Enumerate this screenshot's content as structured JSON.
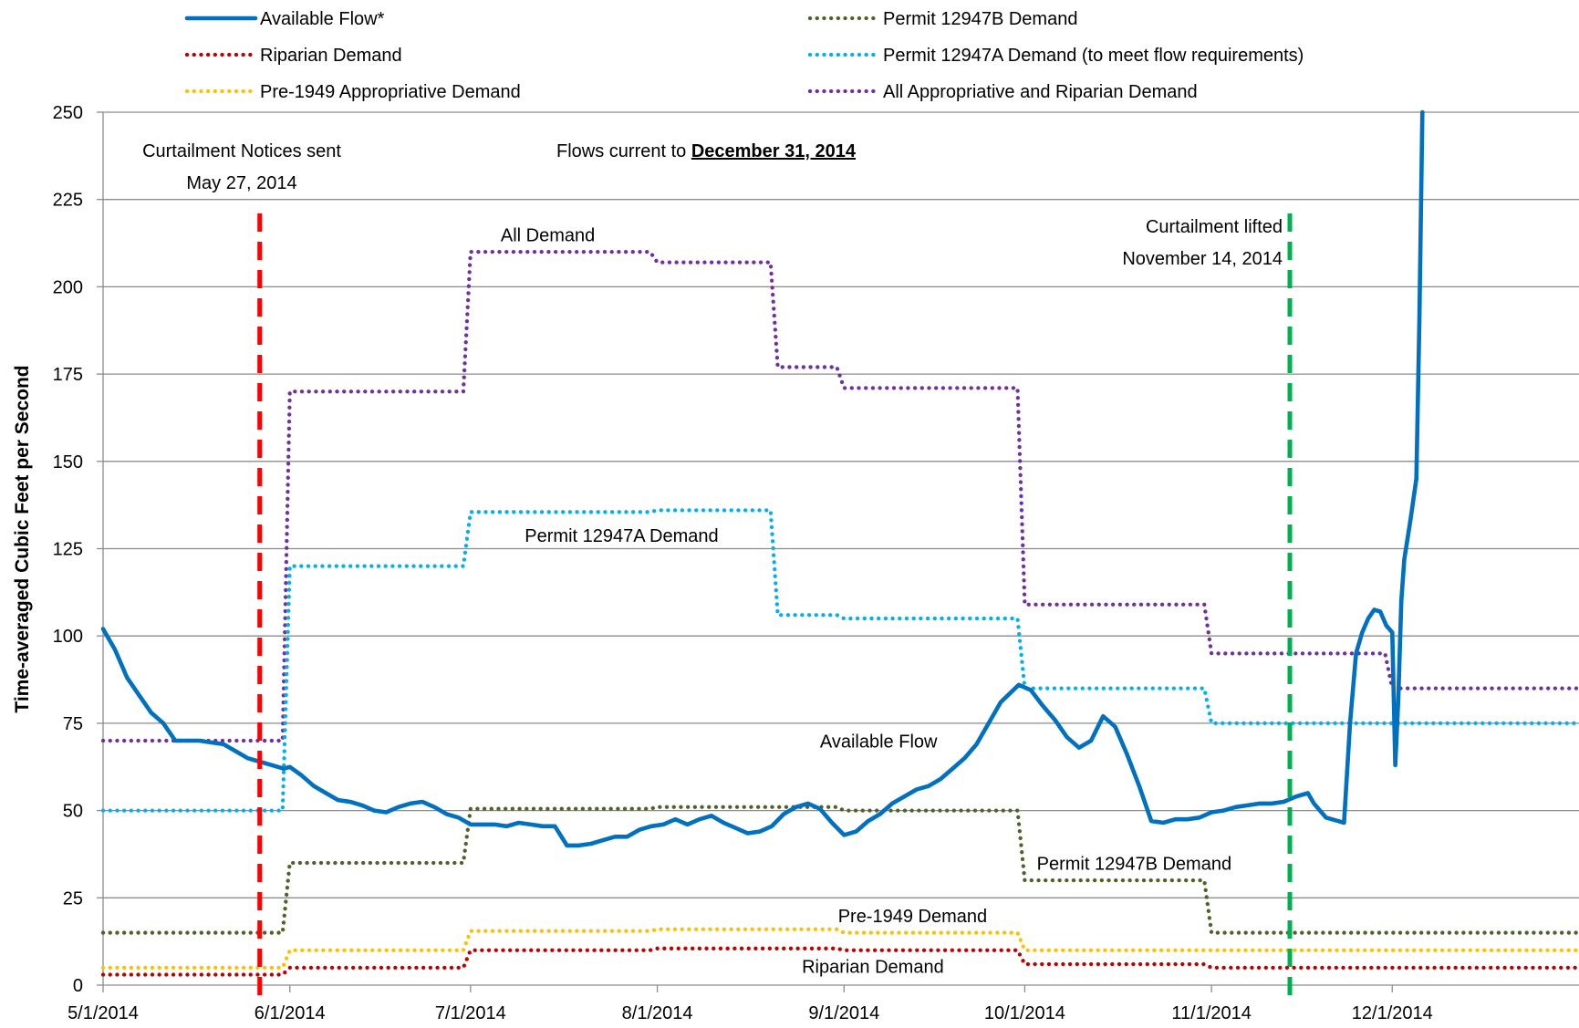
{
  "chart_data": {
    "type": "line",
    "ylabel": "Time-averaged Cubic Feet per Second",
    "xlabel": "",
    "ylim": [
      0,
      250
    ],
    "y_ticks": [
      0,
      25,
      50,
      75,
      100,
      125,
      150,
      175,
      200,
      225,
      250
    ],
    "x_range": [
      "2014-05-01",
      "2015-01-01"
    ],
    "x_ticks": [
      {
        "date": "2014-05-01",
        "label": "5/1/2014"
      },
      {
        "date": "2014-06-01",
        "label": "6/1/2014"
      },
      {
        "date": "2014-07-01",
        "label": "7/1/2014"
      },
      {
        "date": "2014-08-01",
        "label": "8/1/2014"
      },
      {
        "date": "2014-09-01",
        "label": "9/1/2014"
      },
      {
        "date": "2014-10-01",
        "label": "10/1/2014"
      },
      {
        "date": "2014-11-01",
        "label": "11/1/2014"
      },
      {
        "date": "2014-12-01",
        "label": "12/1/2014"
      }
    ],
    "grid": "horizontal",
    "legend_position": "top",
    "series": [
      {
        "name": "Available Flow*",
        "color": "#0070C0",
        "style": "solid",
        "step": false,
        "points": [
          [
            "2014-05-01",
            102
          ],
          [
            "2014-05-03",
            96
          ],
          [
            "2014-05-05",
            88
          ],
          [
            "2014-05-07",
            83
          ],
          [
            "2014-05-09",
            78
          ],
          [
            "2014-05-11",
            75
          ],
          [
            "2014-05-13",
            70
          ],
          [
            "2014-05-15",
            70
          ],
          [
            "2014-05-17",
            70
          ],
          [
            "2014-05-19",
            69.5
          ],
          [
            "2014-05-21",
            69
          ],
          [
            "2014-05-23",
            67
          ],
          [
            "2014-05-25",
            65
          ],
          [
            "2014-05-27",
            64
          ],
          [
            "2014-05-29",
            63
          ],
          [
            "2014-05-31",
            62
          ],
          [
            "2014-06-01",
            62.5
          ],
          [
            "2014-06-03",
            60
          ],
          [
            "2014-06-05",
            57
          ],
          [
            "2014-06-07",
            55
          ],
          [
            "2014-06-09",
            53
          ],
          [
            "2014-06-11",
            52.5
          ],
          [
            "2014-06-13",
            51.5
          ],
          [
            "2014-06-15",
            50
          ],
          [
            "2014-06-17",
            49.5
          ],
          [
            "2014-06-19",
            51
          ],
          [
            "2014-06-21",
            52
          ],
          [
            "2014-06-23",
            52.5
          ],
          [
            "2014-06-25",
            51
          ],
          [
            "2014-06-27",
            49
          ],
          [
            "2014-06-29",
            48
          ],
          [
            "2014-07-01",
            46
          ],
          [
            "2014-07-03",
            46
          ],
          [
            "2014-07-05",
            46
          ],
          [
            "2014-07-07",
            45.5
          ],
          [
            "2014-07-09",
            46.5
          ],
          [
            "2014-07-11",
            46
          ],
          [
            "2014-07-13",
            45.5
          ],
          [
            "2014-07-15",
            45.5
          ],
          [
            "2014-07-17",
            40
          ],
          [
            "2014-07-19",
            40
          ],
          [
            "2014-07-21",
            40.5
          ],
          [
            "2014-07-23",
            41.5
          ],
          [
            "2014-07-25",
            42.5
          ],
          [
            "2014-07-27",
            42.5
          ],
          [
            "2014-07-29",
            44.5
          ],
          [
            "2014-07-31",
            45.5
          ],
          [
            "2014-08-02",
            46
          ],
          [
            "2014-08-04",
            47.5
          ],
          [
            "2014-08-06",
            46
          ],
          [
            "2014-08-08",
            47.5
          ],
          [
            "2014-08-10",
            48.5
          ],
          [
            "2014-08-12",
            46.5
          ],
          [
            "2014-08-14",
            45
          ],
          [
            "2014-08-16",
            43.5
          ],
          [
            "2014-08-18",
            44
          ],
          [
            "2014-08-20",
            45.5
          ],
          [
            "2014-08-22",
            49
          ],
          [
            "2014-08-24",
            51
          ],
          [
            "2014-08-26",
            52
          ],
          [
            "2014-08-28",
            50.5
          ],
          [
            "2014-08-30",
            46.5
          ],
          [
            "2014-09-01",
            43
          ],
          [
            "2014-09-03",
            44
          ],
          [
            "2014-09-05",
            47
          ],
          [
            "2014-09-07",
            49
          ],
          [
            "2014-09-09",
            52
          ],
          [
            "2014-09-11",
            54
          ],
          [
            "2014-09-13",
            56
          ],
          [
            "2014-09-15",
            57
          ],
          [
            "2014-09-17",
            59
          ],
          [
            "2014-09-19",
            62
          ],
          [
            "2014-09-21",
            65
          ],
          [
            "2014-09-23",
            69
          ],
          [
            "2014-09-25",
            75
          ],
          [
            "2014-09-27",
            81
          ],
          [
            "2014-09-30",
            86
          ],
          [
            "2014-10-02",
            84.5
          ],
          [
            "2014-10-04",
            80
          ],
          [
            "2014-10-06",
            76
          ],
          [
            "2014-10-08",
            71
          ],
          [
            "2014-10-10",
            68
          ],
          [
            "2014-10-12",
            70
          ],
          [
            "2014-10-14",
            77
          ],
          [
            "2014-10-16",
            74
          ],
          [
            "2014-10-18",
            66
          ],
          [
            "2014-10-20",
            57
          ],
          [
            "2014-10-22",
            47
          ],
          [
            "2014-10-24",
            46.5
          ],
          [
            "2014-10-26",
            47.5
          ],
          [
            "2014-10-28",
            47.5
          ],
          [
            "2014-10-30",
            48
          ],
          [
            "2014-11-01",
            49.5
          ],
          [
            "2014-11-03",
            50
          ],
          [
            "2014-11-05",
            51
          ],
          [
            "2014-11-07",
            51.5
          ],
          [
            "2014-11-09",
            52
          ],
          [
            "2014-11-11",
            52
          ],
          [
            "2014-11-13",
            52.5
          ],
          [
            "2014-11-15",
            54
          ],
          [
            "2014-11-17",
            55
          ],
          [
            "2014-11-18",
            52
          ],
          [
            "2014-11-20",
            48
          ],
          [
            "2014-11-22",
            47
          ],
          [
            "2014-11-23",
            46.5
          ],
          [
            "2014-11-24",
            75
          ],
          [
            "2014-11-25",
            95
          ],
          [
            "2014-11-26",
            101
          ],
          [
            "2014-11-27",
            105
          ],
          [
            "2014-11-28",
            107.5
          ],
          [
            "2014-11-29",
            107
          ],
          [
            "2014-11-30",
            103
          ],
          [
            "2014-12-01",
            101
          ],
          [
            "2014-12-01T12:00",
            63
          ],
          [
            "2014-12-02",
            82
          ],
          [
            "2014-12-02T12:00",
            110
          ],
          [
            "2014-12-03",
            122
          ],
          [
            "2014-12-04",
            133
          ],
          [
            "2014-12-05",
            145
          ],
          [
            "2014-12-05T12:00",
            190
          ],
          [
            "2014-12-06",
            250
          ]
        ]
      },
      {
        "name": "Riparian Demand",
        "color": "#C00000",
        "style": "dotted",
        "step": true,
        "points": [
          [
            "2014-05-01",
            3
          ],
          [
            "2014-06-01",
            5
          ],
          [
            "2014-07-01",
            10
          ],
          [
            "2014-08-01",
            10.5
          ],
          [
            "2014-08-21",
            10.5
          ],
          [
            "2014-09-01",
            10
          ],
          [
            "2014-10-01",
            6
          ],
          [
            "2014-11-01",
            5
          ],
          [
            "2014-12-01",
            5
          ],
          [
            "2015-01-01",
            5
          ]
        ]
      },
      {
        "name": "Pre-1949 Appropriative Demand",
        "color": "#FFC000",
        "style": "dotted",
        "step": true,
        "points": [
          [
            "2014-05-01",
            5
          ],
          [
            "2014-06-01",
            10
          ],
          [
            "2014-07-01",
            15.5
          ],
          [
            "2014-08-01",
            16
          ],
          [
            "2014-08-21",
            16
          ],
          [
            "2014-09-01",
            15
          ],
          [
            "2014-10-01",
            10
          ],
          [
            "2014-11-01",
            10
          ],
          [
            "2014-12-01",
            10
          ],
          [
            "2015-01-01",
            10
          ]
        ]
      },
      {
        "name": "Permit 12947B Demand",
        "color": "#4F6228",
        "style": "dotted",
        "step": true,
        "points": [
          [
            "2014-05-01",
            15
          ],
          [
            "2014-06-01",
            35
          ],
          [
            "2014-07-01",
            50.5
          ],
          [
            "2014-08-01",
            51
          ],
          [
            "2014-08-21",
            51
          ],
          [
            "2014-09-01",
            50
          ],
          [
            "2014-10-01",
            30
          ],
          [
            "2014-11-01",
            15
          ],
          [
            "2014-12-01",
            15
          ],
          [
            "2015-01-01",
            15
          ]
        ]
      },
      {
        "name": "Permit 12947A Demand (to meet flow requirements)",
        "color": "#00B0F0",
        "style": "dotted",
        "step": true,
        "points": [
          [
            "2014-05-01",
            50
          ],
          [
            "2014-06-01",
            120
          ],
          [
            "2014-07-01",
            135.5
          ],
          [
            "2014-08-01",
            136
          ],
          [
            "2014-08-21",
            106
          ],
          [
            "2014-09-01",
            105
          ],
          [
            "2014-10-01",
            85
          ],
          [
            "2014-11-01",
            75
          ],
          [
            "2014-12-01",
            75
          ],
          [
            "2015-01-01",
            75
          ]
        ]
      },
      {
        "name": "All Appropriative and Riparian Demand",
        "color": "#7030A0",
        "style": "dotted",
        "step": true,
        "points": [
          [
            "2014-05-01",
            70
          ],
          [
            "2014-06-01",
            170
          ],
          [
            "2014-07-01",
            210
          ],
          [
            "2014-08-01",
            207
          ],
          [
            "2014-08-21",
            177
          ],
          [
            "2014-09-01",
            171
          ],
          [
            "2014-10-01",
            109
          ],
          [
            "2014-11-01",
            95
          ],
          [
            "2014-12-01",
            85
          ],
          [
            "2015-01-01",
            85
          ]
        ]
      }
    ],
    "reference_lines": [
      {
        "date": "2014-05-27",
        "color": "#FF0000",
        "label_lines": [
          "Curtailment Notices sent",
          "May 27, 2014"
        ]
      },
      {
        "date": "2014-11-14",
        "color": "#00B050",
        "label_lines": [
          "Curtailment lifted",
          "November 14, 2014"
        ]
      }
    ],
    "annotations": [
      {
        "id": "all",
        "text": "All Demand",
        "date": "2014-07-06",
        "y": 213
      },
      {
        "id": "p12947a",
        "text": "Permit 12947A Demand",
        "date": "2014-07-10",
        "y": 127
      },
      {
        "id": "avail",
        "text": "Available Flow",
        "date": "2014-08-28",
        "y": 68
      },
      {
        "id": "p12947b",
        "text": "Permit 12947B Demand",
        "date": "2014-10-03",
        "y": 33
      },
      {
        "id": "pre1949",
        "text": "Pre-1949 Demand",
        "date": "2014-08-31",
        "y": 18
      },
      {
        "id": "riparian",
        "text": "Riparian Demand",
        "date": "2014-08-25",
        "y": 3.5
      }
    ],
    "subtitle_prefix": "Flows current to ",
    "subtitle_date": "December 31, 2014"
  }
}
